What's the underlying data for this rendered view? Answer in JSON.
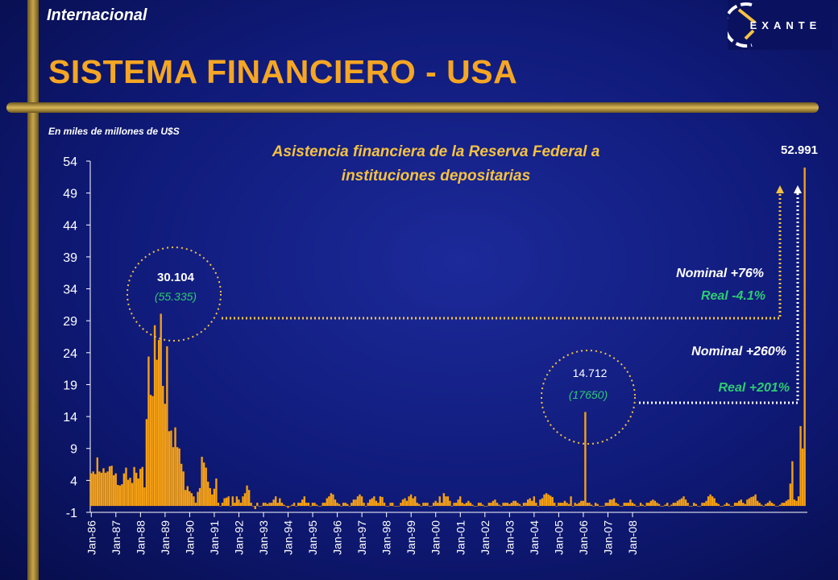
{
  "header": {
    "section": "Internacional",
    "title": "SISTEMA FINANCIERO - USA",
    "logo_text": "EXANTE"
  },
  "units_note": "En miles de millones de U$S",
  "colors": {
    "bars": "#f5a014",
    "title": "#f5a623",
    "accent_green": "#2ecc71",
    "chart_title": "#f5c242"
  },
  "annotations": {
    "peak_1990": {
      "value": "30.104",
      "real": "(55.335)"
    },
    "peak_2001": {
      "value": "14.712",
      "real": "(17650)"
    },
    "peak_2008": {
      "value": "52.991"
    },
    "nominal_76": "Nominal +76%",
    "real_41": "Real -4.1%",
    "nominal_260": "Nominal +260%",
    "real_201": "Real +201%"
  },
  "chart_data": {
    "type": "bar",
    "title": "Asistencia financiera de la Reserva Federal a instituciones depositarias",
    "title_lines": [
      "Asistencia financiera de la Reserva Federal a",
      "instituciones depositarias"
    ],
    "xlabel": "",
    "ylabel": "",
    "ylim": [
      -1,
      54
    ],
    "yticks": [
      -1,
      4,
      9,
      14,
      19,
      24,
      29,
      34,
      39,
      44,
      49,
      54
    ],
    "x_tick_labels": [
      "Jan-86",
      "Jan-87",
      "Jan-88",
      "Jan-89",
      "Jan-90",
      "Jan-91",
      "Jan-92",
      "Jan-93",
      "Jan-94",
      "Jan-95",
      "Jan-96",
      "Jan-97",
      "Jan-98",
      "Jan-99",
      "Jan-00",
      "Jan-01",
      "Jan-02",
      "Jan-03",
      "Jan-04",
      "Jan-05",
      "Jan-06",
      "Jan-07",
      "Jan-08"
    ],
    "x_start": "Jan-86",
    "grid": false,
    "values": [
      5.1,
      5.4,
      5,
      7.6,
      5.4,
      5.2,
      5.9,
      5.2,
      5.4,
      6.2,
      6.3,
      4.8,
      5.1,
      3.3,
      3.2,
      3.4,
      5.1,
      6,
      4.1,
      4.4,
      3.6,
      6.1,
      5.2,
      4.3,
      5.8,
      6.1,
      2.9,
      13.6,
      23.4,
      17.4,
      17.2,
      28.3,
      22.9,
      26,
      30.1,
      18.8,
      16,
      25,
      11.7,
      11.8,
      9.2,
      12.3,
      9.2,
      9,
      6.6,
      5.4,
      2.5,
      3.1,
      2.3,
      2,
      1.5,
      0.5,
      2.2,
      2.8,
      7.7,
      6.8,
      6,
      3.8,
      2.8,
      1.8,
      2.7,
      4.3,
      0.5,
      0,
      0.5,
      1.2,
      1.3,
      1.5,
      0,
      1.5,
      0.5,
      1.5,
      1,
      0.5,
      1.5,
      2,
      3.2,
      2.5,
      0.5,
      0,
      -0.5,
      0.5,
      0,
      0,
      0.5,
      0.5,
      0.3,
      0.5,
      0.5,
      1,
      1.5,
      0.5,
      1.2,
      0.5,
      0.2,
      0,
      -0.3,
      0,
      0.2,
      0.5,
      0,
      0.5,
      0.5,
      1,
      1.5,
      0.5,
      0.5,
      0,
      0.5,
      0.5,
      0.2,
      0,
      0,
      0.5,
      0.5,
      1.2,
      1.5,
      2,
      1.8,
      1,
      0.5,
      0.3,
      0,
      0.5,
      0.5,
      0.3,
      0,
      0.5,
      1,
      1,
      1.5,
      1.8,
      1.5,
      0.5,
      0,
      0.5,
      1,
      1.2,
      1.5,
      0.8,
      0.5,
      1.5,
      1.4,
      0.5,
      0,
      0,
      0.5,
      0.5,
      0,
      0,
      0,
      0.5,
      1,
      1.2,
      0.8,
      1.5,
      1.8,
      1.2,
      1.5,
      0.5,
      0.3,
      0,
      0.5,
      0.5,
      0.5,
      0,
      0,
      0.5,
      0.8,
      0.5,
      1.5,
      0.5,
      2,
      1.5,
      1.5,
      0.8,
      0,
      0.5,
      0.5,
      1,
      1.5,
      0.5,
      0.3,
      0.5,
      0.8,
      0.5,
      0.2,
      0,
      0,
      0.5,
      0.5,
      0.2,
      0,
      0,
      0.5,
      0.5,
      0.8,
      1,
      0.5,
      0.2,
      0,
      0.5,
      0.5,
      0.5,
      0.3,
      0.5,
      0.8,
      0.8,
      0.5,
      0.3,
      0,
      0.5,
      0.5,
      1,
      1.2,
      0.8,
      1.5,
      0.5,
      0,
      1,
      1.2,
      1.8,
      2,
      1.8,
      1.6,
      1.4,
      0.5,
      0,
      0.5,
      0.5,
      0.5,
      0.8,
      0.5,
      0.3,
      1.5,
      0,
      0.5,
      0.3,
      0.5,
      0.8,
      0.8,
      14.712,
      0.5,
      0.5,
      0.2,
      0,
      0.5,
      0.3,
      0,
      0,
      0,
      0.5,
      0.5,
      1,
      1,
      1.2,
      0.5,
      0.3,
      0,
      0,
      0.5,
      0.5,
      0.5,
      1,
      0.5,
      0.3,
      0,
      0,
      0.5,
      0.2,
      0,
      0.5,
      0.5,
      0.8,
      1,
      0.8,
      0.5,
      0.3,
      0,
      0,
      0.2,
      0.5,
      0,
      0.2,
      0.5,
      0.5,
      0.8,
      1,
      1.2,
      1.5,
      1,
      0.5,
      0,
      0,
      0.5,
      0.3,
      0,
      0,
      0.5,
      0.5,
      0.8,
      1.5,
      1.8,
      1.5,
      1.2,
      0.5,
      0.3,
      0,
      0,
      0.2,
      0.5,
      0.3,
      0,
      0,
      0.5,
      0.5,
      0.8,
      1,
      0.5,
      0.3,
      1,
      1.2,
      1.4,
      1.5,
      1.8,
      0.8,
      0.5,
      0.2,
      0,
      0.3,
      0.5,
      0.8,
      0.5,
      0.3,
      0,
      0,
      0.2,
      0.5,
      0.5,
      0.8,
      1,
      3.5,
      7,
      1,
      0.8,
      1.5,
      12.5,
      9,
      52.991
    ]
  }
}
